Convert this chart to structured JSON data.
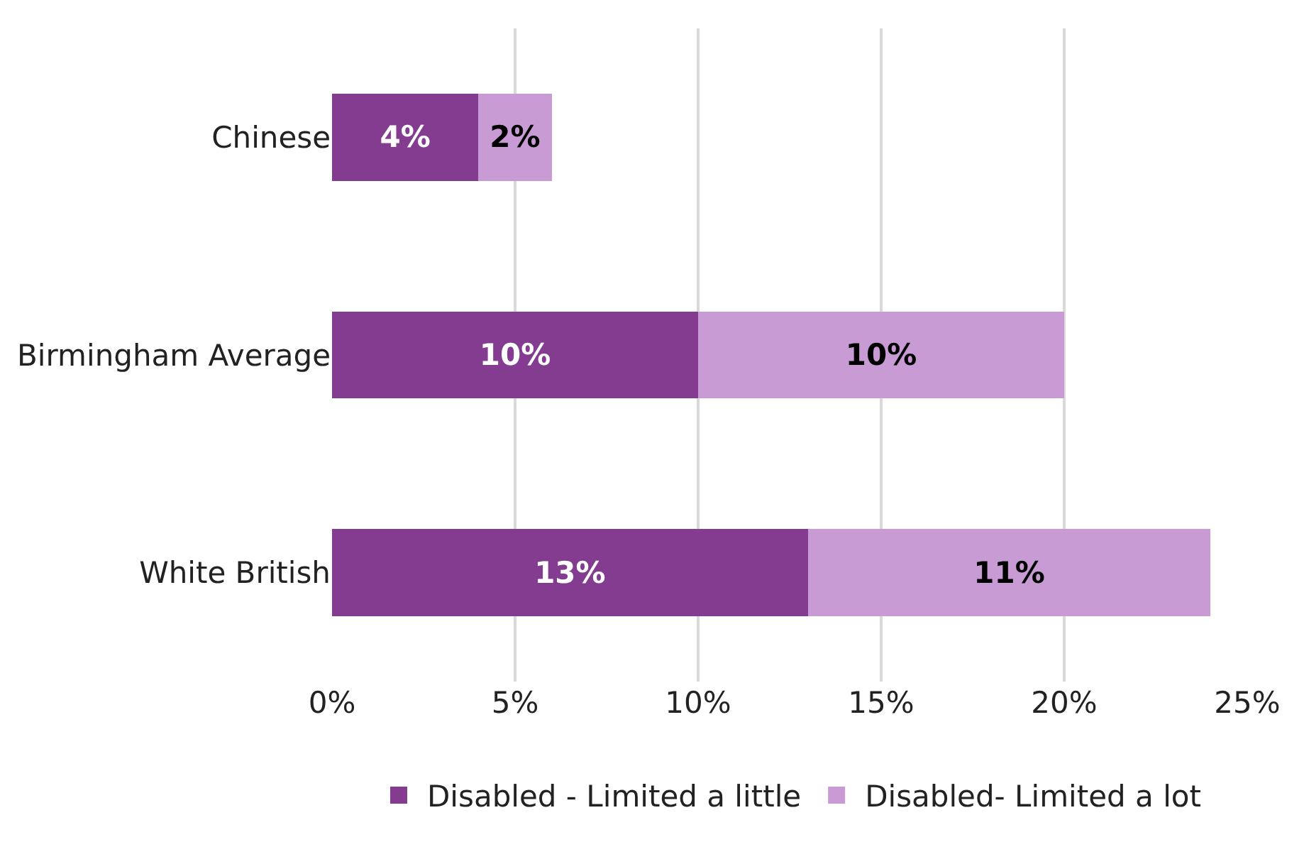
{
  "chart_data": {
    "type": "bar",
    "orientation": "horizontal",
    "stacked": true,
    "categories": [
      "Chinese",
      "Birmingham Average",
      "White British"
    ],
    "series": [
      {
        "name": "Disabled - Limited a little",
        "color": "#843c91",
        "values": [
          4,
          10,
          13
        ],
        "value_labels": [
          "4%",
          "10%",
          "13%"
        ]
      },
      {
        "name": "Disabled- Limited a lot",
        "color": "#c99bd4",
        "values": [
          2,
          10,
          11
        ],
        "value_labels": [
          "2%",
          "10%",
          "11%"
        ]
      }
    ],
    "xlim": [
      0,
      25
    ],
    "xticks": [
      {
        "value": 0,
        "label": "0%"
      },
      {
        "value": 5,
        "label": "5%"
      },
      {
        "value": 10,
        "label": "10%"
      },
      {
        "value": 15,
        "label": "15%"
      },
      {
        "value": 20,
        "label": "20%"
      },
      {
        "value": 25,
        "label": "25%"
      }
    ],
    "grid": "x",
    "legend": "bottom"
  }
}
